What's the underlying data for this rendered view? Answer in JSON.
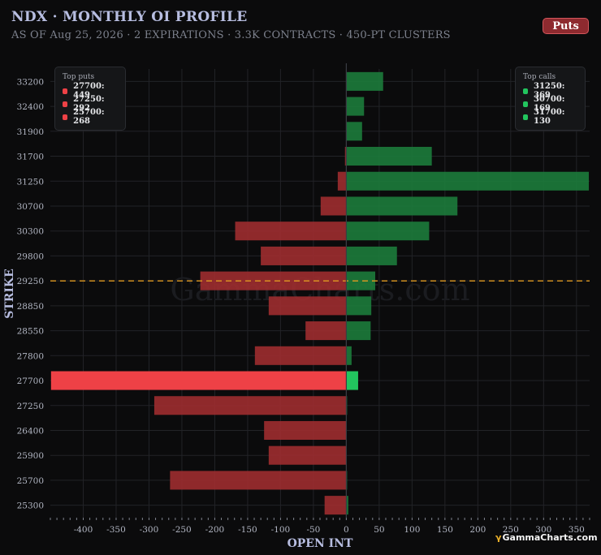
{
  "header": {
    "title": "NDX · MONTHLY OI PROFILE",
    "subtitle": "AS OF Aug 25, 2026 · 2 EXPIRATIONS · 3.3K CONTRACTS · 450-PT CLUSTERS",
    "puts_button_label": "Puts"
  },
  "watermark": "GammaCharts.com",
  "brand": {
    "mark": "γ",
    "name": "GammaCharts.com"
  },
  "colors": {
    "puts": "#9b2c2f",
    "puts_highlight": "#ee4146",
    "calls": "#1c7a3b",
    "calls_highlight": "#22c55e",
    "spot_line": "#e09a22",
    "background": "#0b0b0c",
    "grid": "#222327"
  },
  "legend_puts": {
    "title": "Top puts",
    "items": [
      {
        "label": "27700: 449"
      },
      {
        "label": "27250: 292"
      },
      {
        "label": "25700: 268"
      }
    ]
  },
  "legend_calls": {
    "title": "Top calls",
    "items": [
      {
        "label": "31250: 369"
      },
      {
        "label": "30700: 169"
      },
      {
        "label": "31700: 130"
      }
    ]
  },
  "chart_data": {
    "type": "bar",
    "orientation": "horizontal",
    "xlabel": "OPEN INT",
    "ylabel": "STRIKE",
    "xlim": [
      -450,
      370
    ],
    "x_ticks": [
      -400,
      -350,
      -300,
      -250,
      -200,
      -150,
      -100,
      -50,
      0,
      50,
      100,
      150,
      200,
      250,
      300,
      350
    ],
    "spot_level": 29250,
    "grid": true,
    "legend_positions": [
      "top-left",
      "top-right"
    ],
    "categories": [
      "33200",
      "32400",
      "31900",
      "31700",
      "31250",
      "30700",
      "30300",
      "29800",
      "29250",
      "28850",
      "28550",
      "27800",
      "27700",
      "27250",
      "26400",
      "25900",
      "25700",
      "25300"
    ],
    "series": [
      {
        "name": "Puts",
        "values": [
          0,
          0,
          0,
          -2,
          -13,
          -39,
          -169,
          -130,
          -222,
          -118,
          -62,
          -139,
          -449,
          -292,
          -125,
          -118,
          -268,
          -33
        ]
      },
      {
        "name": "Calls",
        "values": [
          56,
          27,
          24,
          130,
          369,
          169,
          126,
          77,
          44,
          38,
          37,
          8,
          18,
          1,
          0,
          0,
          1,
          3
        ]
      }
    ],
    "highlight_strike": "27700"
  }
}
